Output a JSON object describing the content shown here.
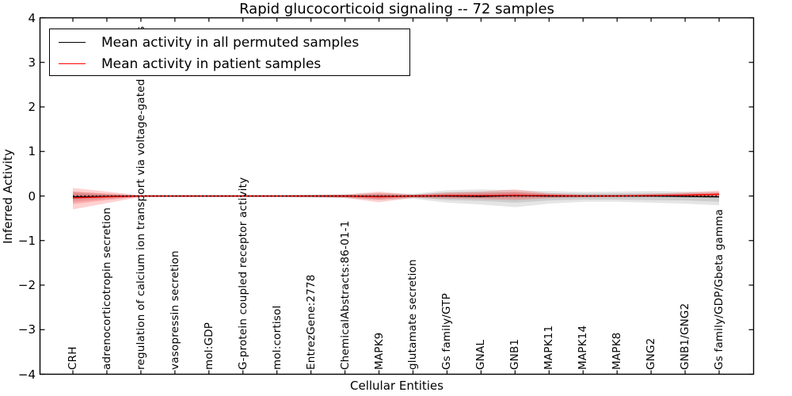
{
  "title": "Rapid glucocorticoid signaling -- 72 samples",
  "xlabel": "Cellular Entities",
  "ylabel": "Inferred Activity",
  "legend": {
    "items": [
      {
        "label": "Mean activity in all permuted samples",
        "color": "#000000"
      },
      {
        "label": "Mean activity in patient samples",
        "color": "#ff0000"
      }
    ]
  },
  "axes": {
    "ytick_labels": [
      "4",
      "3",
      "2",
      "1",
      "0",
      "−1",
      "−2",
      "−3",
      "−4"
    ],
    "ytick_values": [
      4,
      3,
      2,
      1,
      0,
      -1,
      -2,
      -3,
      -4
    ]
  },
  "chart_data": {
    "type": "line",
    "title": "Rapid glucocorticoid signaling -- 72 samples",
    "xlabel": "Cellular Entities",
    "ylabel": "Inferred Activity",
    "ylim": [
      -4,
      4
    ],
    "grid": false,
    "legend_position": "upper left",
    "categories": [
      "CRH",
      "adrenocorticotropin secretion",
      "regulation of calcium ion transport via voltage-gated channels",
      "vasopressin secretion",
      "mol:GDP",
      "G-protein coupled receptor activity",
      "mol:cortisol",
      "EntrezGene:2778",
      "ChemicalAbstracts:86-01-1",
      "MAPK9",
      "glutamate secretion",
      "Gs family/GTP",
      "GNAL",
      "GNB1",
      "MAPK11",
      "MAPK14",
      "MAPK8",
      "GNG2",
      "GNB1/GNG2",
      "Gs family/GDP/Gbeta gamma"
    ],
    "series": [
      {
        "name": "Permuted band (outer)",
        "role": "band",
        "color": "rgba(0,0,0,0.10)",
        "upper": [
          0.1,
          0.05,
          0.02,
          0.02,
          0.02,
          0.02,
          0.02,
          0.03,
          0.04,
          0.07,
          0.05,
          0.13,
          0.15,
          0.13,
          0.11,
          0.09,
          0.1,
          0.11,
          0.1,
          0.09
        ],
        "lower": [
          -0.13,
          -0.07,
          -0.025,
          -0.025,
          -0.025,
          -0.025,
          -0.025,
          -0.035,
          -0.05,
          -0.09,
          -0.06,
          -0.15,
          -0.19,
          -0.25,
          -0.17,
          -0.13,
          -0.13,
          -0.15,
          -0.17,
          -0.21
        ]
      },
      {
        "name": "Permuted band (inner)",
        "role": "band",
        "color": "rgba(0,0,0,0.10)",
        "upper": [
          0.06,
          0.03,
          0.012,
          0.012,
          0.012,
          0.012,
          0.012,
          0.018,
          0.024,
          0.04,
          0.03,
          0.08,
          0.09,
          0.08,
          0.065,
          0.055,
          0.06,
          0.065,
          0.06,
          0.055
        ],
        "lower": [
          -0.08,
          -0.04,
          -0.015,
          -0.015,
          -0.015,
          -0.015,
          -0.015,
          -0.02,
          -0.03,
          -0.055,
          -0.035,
          -0.09,
          -0.11,
          -0.15,
          -0.1,
          -0.08,
          -0.08,
          -0.09,
          -0.1,
          -0.13
        ]
      },
      {
        "name": "Patient band (outer)",
        "role": "band",
        "color": "rgba(255,0,0,0.18)",
        "upper": [
          0.18,
          0.1,
          0.015,
          0.015,
          0.015,
          0.015,
          0.015,
          0.02,
          0.03,
          0.1,
          0.03,
          0.08,
          0.1,
          0.15,
          0.06,
          0.03,
          0.03,
          0.05,
          0.08,
          0.12
        ],
        "lower": [
          -0.3,
          -0.16,
          -0.02,
          -0.02,
          -0.02,
          -0.02,
          -0.02,
          -0.025,
          -0.04,
          -0.14,
          -0.04,
          -0.06,
          -0.07,
          -0.09,
          -0.05,
          -0.03,
          -0.02,
          -0.02,
          -0.01,
          -0.03
        ]
      },
      {
        "name": "Patient band (inner)",
        "role": "band",
        "color": "rgba(255,0,0,0.18)",
        "upper": [
          0.1,
          0.055,
          0.008,
          0.008,
          0.008,
          0.008,
          0.008,
          0.012,
          0.018,
          0.055,
          0.018,
          0.045,
          0.06,
          0.09,
          0.035,
          0.018,
          0.018,
          0.03,
          0.05,
          0.08
        ],
        "lower": [
          -0.18,
          -0.09,
          -0.012,
          -0.012,
          -0.012,
          -0.012,
          -0.012,
          -0.015,
          -0.025,
          -0.08,
          -0.025,
          -0.035,
          -0.04,
          -0.05,
          -0.03,
          -0.018,
          -0.012,
          -0.012,
          -0.005,
          -0.015
        ]
      },
      {
        "name": "Mean activity in all permuted samples",
        "role": "mean-line",
        "color": "#000000",
        "values": [
          -0.02,
          -0.01,
          0,
          0,
          0,
          0,
          0,
          0,
          0,
          -0.01,
          0,
          0,
          -0.01,
          0.01,
          0,
          0,
          0,
          0,
          -0.01,
          -0.02
        ]
      },
      {
        "name": "Mean activity in patient samples",
        "role": "mean-line",
        "color": "#ff0000",
        "values": [
          -0.04,
          -0.02,
          0,
          0,
          0,
          0,
          0,
          0,
          0,
          -0.02,
          0,
          0.01,
          0.01,
          0.02,
          0.01,
          0,
          0,
          0.01,
          0.02,
          0.04
        ]
      },
      {
        "name": "Zero reference",
        "role": "reference-line",
        "style": "dotted",
        "color": "#000000",
        "value": 0
      }
    ]
  }
}
